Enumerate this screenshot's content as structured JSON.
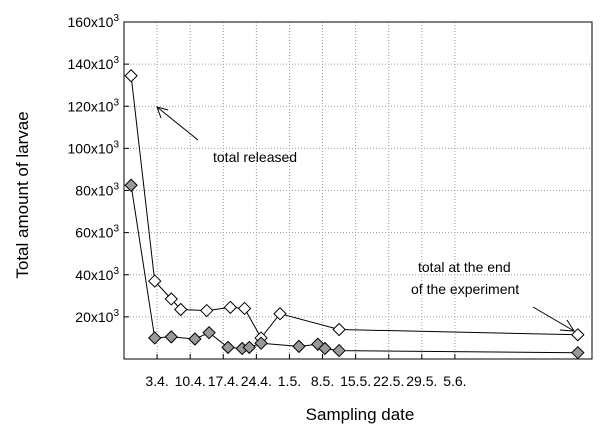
{
  "chart_data": {
    "type": "line",
    "xlabel": "Sampling date",
    "ylabel": "Total amount of larvae",
    "ylim": [
      0,
      160000
    ],
    "xlim": [
      0,
      99
    ],
    "grid": true,
    "x_ticks": [
      {
        "label": "3.4.",
        "x": 7
      },
      {
        "label": "10.4.",
        "x": 14
      },
      {
        "label": "17.4.",
        "x": 21
      },
      {
        "label": "24.4.",
        "x": 28
      },
      {
        "label": "1.5.",
        "x": 35
      },
      {
        "label": "8.5.",
        "x": 42
      },
      {
        "label": "15.5.",
        "x": 49
      },
      {
        "label": "22.5.",
        "x": 56
      },
      {
        "label": "29.5.",
        "x": 63
      },
      {
        "label": "5.6.",
        "x": 70
      }
    ],
    "y_ticks": [
      {
        "base": "20x10",
        "exp": "3",
        "value": 20000
      },
      {
        "base": "40x10",
        "exp": "3",
        "value": 40000
      },
      {
        "base": "60x10",
        "exp": "3",
        "value": 60000
      },
      {
        "base": "80x10",
        "exp": "3",
        "value": 80000
      },
      {
        "base": "100x10",
        "exp": "3",
        "value": 100000
      },
      {
        "base": "120x10",
        "exp": "3",
        "value": 120000
      },
      {
        "base": "140x10",
        "exp": "3",
        "value": 140000
      },
      {
        "base": "160x10",
        "exp": "3",
        "value": 160000
      }
    ],
    "series": [
      {
        "fill": "#ffffff",
        "points": [
          {
            "x": 1.5,
            "y": 134500
          },
          {
            "x": 6.5,
            "y": 37000
          },
          {
            "x": 10,
            "y": 28500
          },
          {
            "x": 12,
            "y": 23500
          },
          {
            "x": 17.5,
            "y": 23000
          },
          {
            "x": 22.5,
            "y": 24500
          },
          {
            "x": 25.5,
            "y": 24000
          },
          {
            "x": 29,
            "y": 10000
          },
          {
            "x": 33,
            "y": 21500
          },
          {
            "x": 45.5,
            "y": 14000
          },
          {
            "x": 96,
            "y": 11500
          }
        ]
      },
      {
        "fill": "#999999",
        "points": [
          {
            "x": 1.5,
            "y": 82500
          },
          {
            "x": 6.5,
            "y": 10000
          },
          {
            "x": 10,
            "y": 10500
          },
          {
            "x": 15,
            "y": 9500
          },
          {
            "x": 18,
            "y": 12500
          },
          {
            "x": 22,
            "y": 5500
          },
          {
            "x": 25,
            "y": 5000
          },
          {
            "x": 26.5,
            "y": 5500
          },
          {
            "x": 29,
            "y": 7500
          },
          {
            "x": 37,
            "y": 6000
          },
          {
            "x": 41,
            "y": 7000
          },
          {
            "x": 42.5,
            "y": 5000
          },
          {
            "x": 45.5,
            "y": 4000
          },
          {
            "x": 96,
            "y": 3000
          }
        ]
      }
    ],
    "annotations": {
      "released": {
        "text": "total released"
      },
      "end_line1": {
        "text": "total at the end"
      },
      "end_line2": {
        "text": "of the experiment"
      }
    }
  }
}
